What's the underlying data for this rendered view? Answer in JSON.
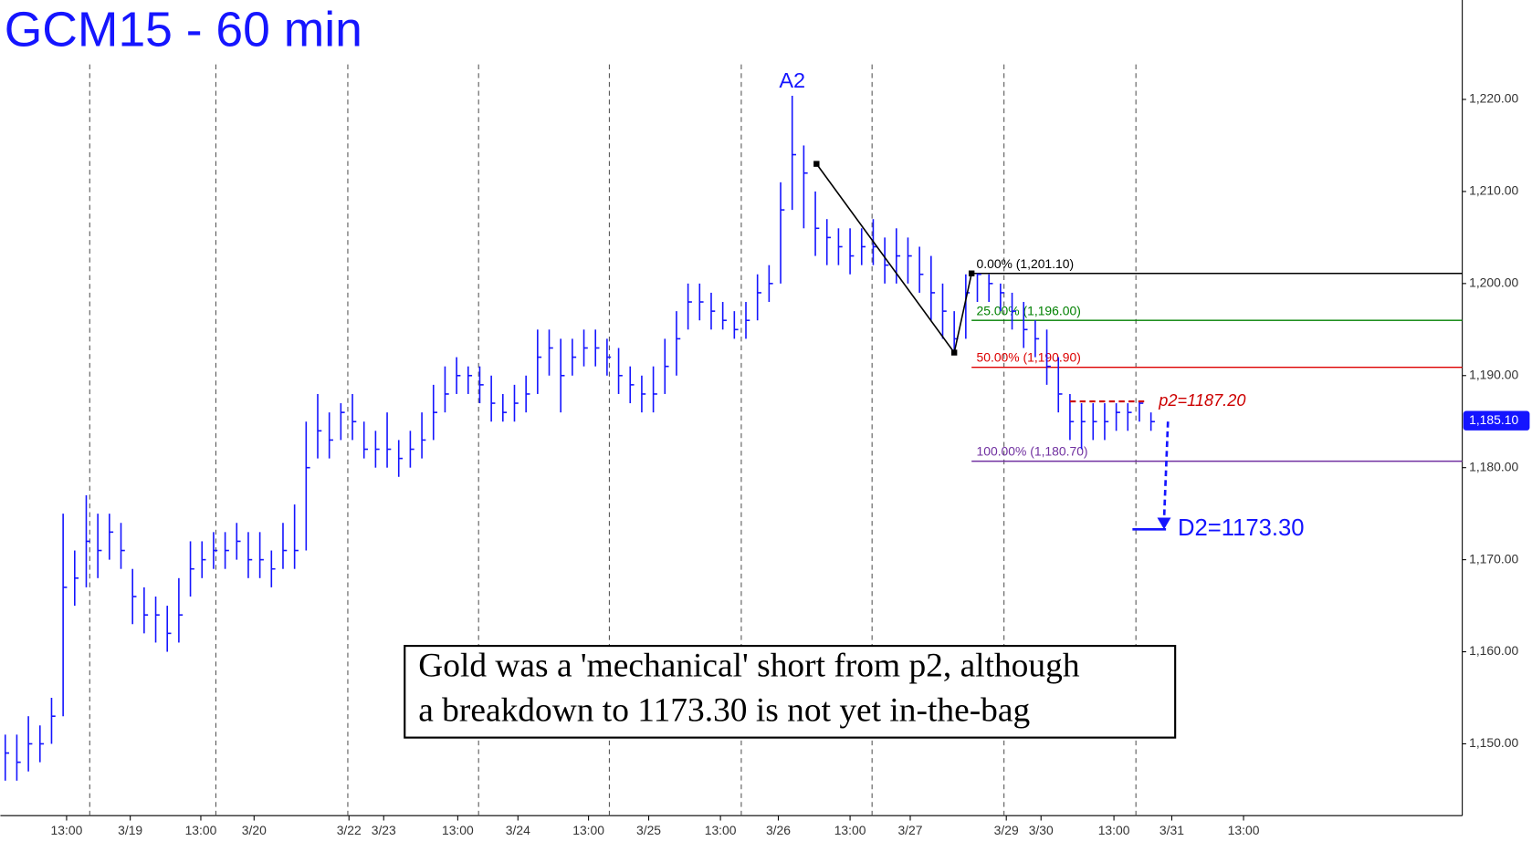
{
  "chart_data": {
    "type": "ohlc",
    "title": "GCM15 - 60 min",
    "color": "#1515ff",
    "xlim": [
      -0.42,
      125.9
    ],
    "ylim": [
      1142.2,
      1230.8
    ],
    "yticks": [
      {
        "value": 1150,
        "label": "1,150.00"
      },
      {
        "value": 1160,
        "label": "1,160.00"
      },
      {
        "value": 1170,
        "label": "1,170.00"
      },
      {
        "value": 1180,
        "label": "1,180.00"
      },
      {
        "value": 1190,
        "label": "1,190.00"
      },
      {
        "value": 1200,
        "label": "1,200.00"
      },
      {
        "value": 1210,
        "label": "1,210.00"
      },
      {
        "value": 1220,
        "label": "1,220.00"
      }
    ],
    "xticks": [
      {
        "value": 5.3,
        "label": "13:00"
      },
      {
        "value": 10.8,
        "label": "3/19"
      },
      {
        "value": 16.9,
        "label": "13:00"
      },
      {
        "value": 21.5,
        "label": "3/20"
      },
      {
        "value": 29.7,
        "label": "3/22"
      },
      {
        "value": 32.7,
        "label": "3/23"
      },
      {
        "value": 39.1,
        "label": "13:00"
      },
      {
        "value": 44.3,
        "label": "3/24"
      },
      {
        "value": 50.4,
        "label": "13:00"
      },
      {
        "value": 55.6,
        "label": "3/25"
      },
      {
        "value": 61.8,
        "label": "13:00"
      },
      {
        "value": 66.8,
        "label": "3/26"
      },
      {
        "value": 73,
        "label": "13:00"
      },
      {
        "value": 78.2,
        "label": "3/27"
      },
      {
        "value": 86.5,
        "label": "3/29"
      },
      {
        "value": 89.5,
        "label": "3/30"
      },
      {
        "value": 95.8,
        "label": "13:00"
      },
      {
        "value": 100.8,
        "label": "3/31"
      },
      {
        "value": 107,
        "label": "13:00"
      }
    ],
    "day_separators": [
      7.3,
      18.2,
      29.6,
      40.9,
      52.2,
      63.6,
      74.9,
      86.3,
      97.7
    ],
    "close": [
      1149,
      1148,
      1150,
      1150,
      1153,
      1167,
      1168,
      1172,
      1171,
      1173,
      1171,
      1166,
      1164,
      1164,
      1162,
      1164,
      1169,
      1170,
      1171,
      1171,
      1172,
      1170,
      1170,
      1169,
      1171,
      1171,
      1180,
      1184,
      1183,
      1186,
      1185,
      1182,
      1182,
      1182,
      1181,
      1182,
      1183,
      1186,
      1188,
      1190,
      1190,
      1189,
      1187,
      1186,
      1187,
      1188,
      1192,
      1193,
      1190,
      1192,
      1193,
      1193,
      1192,
      1190,
      1189,
      1188,
      1188,
      1191,
      1194,
      1198,
      1198,
      1197,
      1196,
      1195,
      1196,
      1199,
      1200,
      1208,
      1214,
      1212,
      1206,
      1205,
      1204,
      1203,
      1204,
      1204,
      1202,
      1203,
      1203,
      1201,
      1199,
      1197,
      1194,
      1199,
      1201,
      1200,
      1199,
      1197,
      1195,
      1194,
      1191,
      1188,
      1185,
      1185,
      1185,
      1185,
      1186,
      1186,
      1187,
      1185
    ],
    "high": [
      1151,
      1151,
      1153,
      1152,
      1155,
      1175,
      1171,
      1177,
      1175,
      1175,
      1174,
      1169,
      1167,
      1166,
      1165,
      1168,
      1172,
      1172,
      1173,
      1173,
      1174,
      1173,
      1173,
      1171,
      1174,
      1176,
      1185,
      1188,
      1186,
      1187,
      1188,
      1185,
      1184,
      1186,
      1183,
      1184,
      1186,
      1189,
      1191,
      1192,
      1191,
      1191,
      1190,
      1188,
      1189,
      1190,
      1195,
      1195,
      1194,
      1194,
      1195,
      1195,
      1194,
      1193,
      1191,
      1190,
      1191,
      1194,
      1197,
      1200,
      1200,
      1199,
      1198,
      1197,
      1198,
      1201,
      1202,
      1211,
      1220.4,
      1215,
      1210,
      1207,
      1206,
      1206,
      1206,
      1207,
      1205,
      1206,
      1205,
      1204,
      1203,
      1200,
      1197,
      1201,
      1201.1,
      1201,
      1200,
      1199,
      1198,
      1196,
      1195,
      1192,
      1188,
      1187,
      1187,
      1187,
      1187,
      1187,
      1187.2,
      1186
    ],
    "low": [
      1146,
      1146,
      1147,
      1148,
      1150,
      1153,
      1165,
      1167,
      1168,
      1170,
      1169,
      1163,
      1162,
      1161,
      1160,
      1161,
      1166,
      1168,
      1169,
      1169,
      1170,
      1168,
      1168,
      1167,
      1169,
      1169,
      1171,
      1181,
      1181,
      1183,
      1183,
      1181,
      1180,
      1180,
      1179,
      1180,
      1181,
      1183,
      1186,
      1188,
      1188,
      1187,
      1185,
      1185,
      1185,
      1186,
      1188,
      1190,
      1186,
      1190,
      1191,
      1191,
      1190,
      1188,
      1187,
      1186,
      1186,
      1188,
      1190,
      1195,
      1196,
      1195,
      1195,
      1194,
      1194,
      1196,
      1198,
      1200,
      1208,
      1206,
      1203,
      1202,
      1202,
      1201,
      1202,
      1202,
      1200,
      1200,
      1200,
      1199,
      1196,
      1194,
      1192.5,
      1194,
      1198,
      1198,
      1197,
      1195,
      1193,
      1192,
      1189,
      1186,
      1183,
      1182,
      1183,
      1183,
      1184,
      1184,
      1185,
      1184
    ],
    "peak_label": {
      "text": "A2",
      "x": 68,
      "value": 1220.4
    },
    "swing_line": {
      "x": [
        70.1,
        82,
        83.5
      ],
      "values": [
        1213,
        1192.5,
        1201.1
      ]
    },
    "fib_start": 83.5,
    "fib_levels": [
      {
        "label": "0.00% (1,201.10)",
        "value": 1201.1,
        "color": "#000000"
      },
      {
        "label": "25.00% (1,196.00)",
        "value": 1196,
        "color": "#008000"
      },
      {
        "label": "50.00% (1,190.90)",
        "value": 1190.9,
        "color": "#dd0000"
      },
      {
        "label": "100.00% (1,180.70)",
        "value": 1180.7,
        "color": "#7030a0"
      }
    ],
    "p2": {
      "label": "p2=1187.20",
      "value": 1187.2,
      "x": [
        92,
        98.5
      ],
      "color": "#cc0000"
    },
    "d2": {
      "label": "D2=1173.30",
      "value": 1173.3,
      "x": [
        97.4,
        100.3
      ],
      "from_x": 100.3,
      "from": 1185,
      "color": "#1515ff"
    },
    "last_price": {
      "label": "1,185.10",
      "value": 1185.1
    },
    "annotation": [
      "Gold was a 'mechanical' short from p2, although",
      "a breakdown to 1173.30 is not yet in-the-bag"
    ]
  }
}
